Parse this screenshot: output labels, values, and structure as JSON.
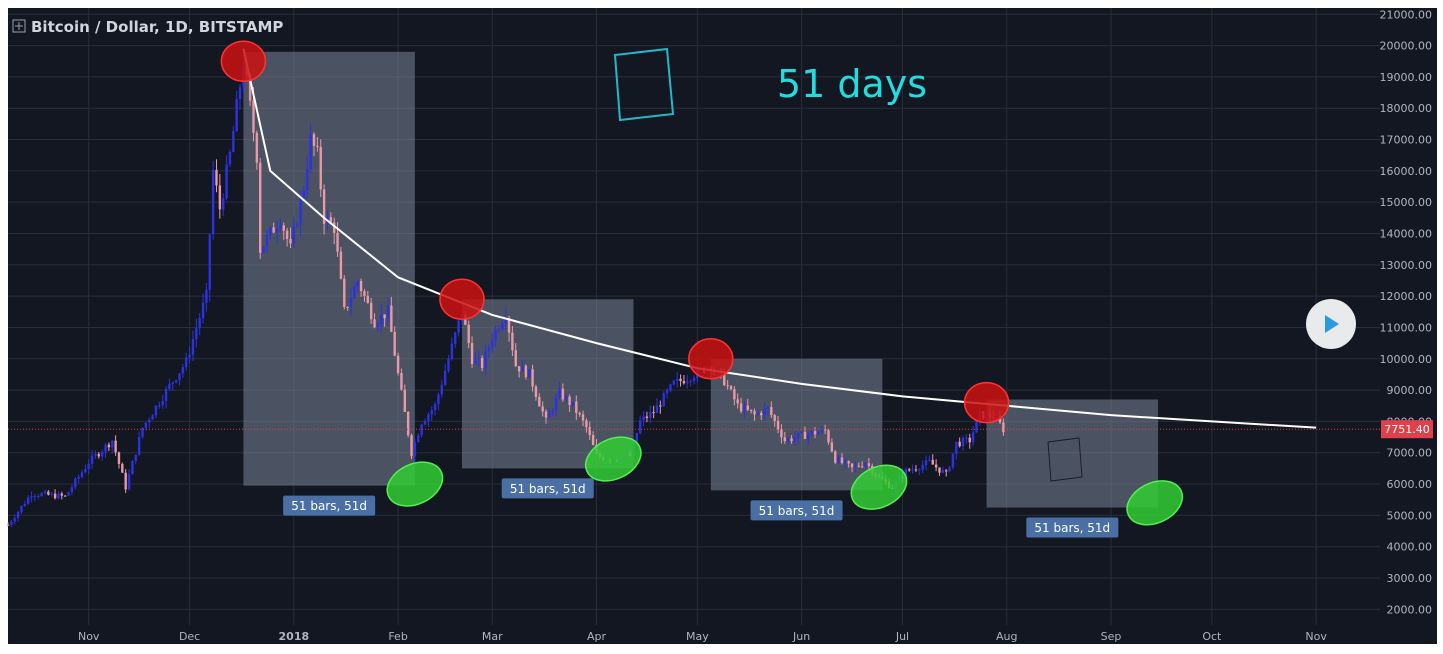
{
  "header": {
    "title": "Bitcoin / Dollar, 1D, BITSTAMP"
  },
  "annotation": {
    "big_text": "51 days",
    "range_label": "51 bars, 51d"
  },
  "last_price": {
    "label": "7751.40",
    "value": 7751.4
  },
  "colors": {
    "background": "#131722",
    "grid": "#2a2e39",
    "bull": "#2b32e0",
    "bear": "#e89aa7",
    "range_box": "#7a8496",
    "range_badge": "#4a6fa5",
    "peak_marker": "#cc1111",
    "trough_marker": "#33cc33",
    "trend_curve": "#ffffff",
    "annotation_text": "#22dde0",
    "price_line": "#e0404a"
  },
  "chart_data": {
    "type": "candlestick",
    "title": "Bitcoin / Dollar, 1D, BITSTAMP",
    "x_ticks": [
      "Nov",
      "Dec",
      "2018",
      "Feb",
      "Mar",
      "Apr",
      "May",
      "Jun",
      "Jul",
      "Aug",
      "Sep",
      "Oct",
      "Nov"
    ],
    "x_tick_dates": [
      "2017-11-01",
      "2017-12-01",
      "2018-01-01",
      "2018-02-01",
      "2018-03-01",
      "2018-04-01",
      "2018-05-01",
      "2018-06-01",
      "2018-07-01",
      "2018-08-01",
      "2018-09-01",
      "2018-10-01",
      "2018-11-01"
    ],
    "y_ticks": [
      "2000.00",
      "3000.00",
      "4000.00",
      "5000.00",
      "6000.00",
      "7000.00",
      "8000.00",
      "9000.00",
      "10000.00",
      "11000.00",
      "12000.00",
      "13000.00",
      "14000.00",
      "15000.00",
      "16000.00",
      "17000.00",
      "18000.00",
      "19000.00",
      "20000.00",
      "21000.00"
    ],
    "y_range": [
      1500,
      21200
    ],
    "x_range": [
      "2017-10-08",
      "2018-11-20"
    ],
    "price_path": [
      [
        "2017-10-08",
        4700
      ],
      [
        "2017-10-15",
        5700
      ],
      [
        "2017-10-25",
        5600
      ],
      [
        "2017-11-01",
        6700
      ],
      [
        "2017-11-08",
        7400
      ],
      [
        "2017-11-12",
        5900
      ],
      [
        "2017-11-17",
        7800
      ],
      [
        "2017-11-26",
        9300
      ],
      [
        "2017-11-30",
        9900
      ],
      [
        "2017-12-03",
        11000
      ],
      [
        "2017-12-06",
        12000
      ],
      [
        "2017-12-08",
        16000
      ],
      [
        "2017-12-10",
        14800
      ],
      [
        "2017-12-13",
        16500
      ],
      [
        "2017-12-17",
        19500
      ],
      [
        "2017-12-18",
        18800
      ],
      [
        "2017-12-21",
        16500
      ],
      [
        "2017-12-22",
        13500
      ],
      [
        "2017-12-25",
        14000
      ],
      [
        "2017-12-28",
        14500
      ],
      [
        "2017-12-31",
        13500
      ],
      [
        "2018-01-04",
        15500
      ],
      [
        "2018-01-06",
        17000
      ],
      [
        "2018-01-08",
        16500
      ],
      [
        "2018-01-10",
        14500
      ],
      [
        "2018-01-13",
        14200
      ],
      [
        "2018-01-16",
        11500
      ],
      [
        "2018-01-20",
        12500
      ],
      [
        "2018-01-25",
        11200
      ],
      [
        "2018-01-29",
        11500
      ],
      [
        "2018-02-01",
        9500
      ],
      [
        "2018-02-05",
        7000
      ],
      [
        "2018-02-08",
        8000
      ],
      [
        "2018-02-12",
        8500
      ],
      [
        "2018-02-16",
        10000
      ],
      [
        "2018-02-20",
        11500
      ],
      [
        "2018-02-23",
        10000
      ],
      [
        "2018-02-26",
        9800
      ],
      [
        "2018-03-01",
        10700
      ],
      [
        "2018-03-05",
        11500
      ],
      [
        "2018-03-08",
        9800
      ],
      [
        "2018-03-12",
        9500
      ],
      [
        "2018-03-17",
        8000
      ],
      [
        "2018-03-21",
        8900
      ],
      [
        "2018-03-25",
        8500
      ],
      [
        "2018-03-29",
        7800
      ],
      [
        "2018-04-01",
        6900
      ],
      [
        "2018-04-06",
        6800
      ],
      [
        "2018-04-11",
        6900
      ],
      [
        "2018-04-14",
        8000
      ],
      [
        "2018-04-18",
        8300
      ],
      [
        "2018-04-24",
        9200
      ],
      [
        "2018-04-28",
        9400
      ],
      [
        "2018-05-05",
        9800
      ],
      [
        "2018-05-09",
        9300
      ],
      [
        "2018-05-13",
        8500
      ],
      [
        "2018-05-18",
        8200
      ],
      [
        "2018-05-22",
        8400
      ],
      [
        "2018-05-27",
        7400
      ],
      [
        "2018-06-03",
        7600
      ],
      [
        "2018-06-08",
        7700
      ],
      [
        "2018-06-11",
        6800
      ],
      [
        "2018-06-16",
        6500
      ],
      [
        "2018-06-20",
        6700
      ],
      [
        "2018-06-24",
        6200
      ],
      [
        "2018-06-28",
        5900
      ],
      [
        "2018-07-02",
        6400
      ],
      [
        "2018-07-09",
        6700
      ],
      [
        "2018-07-14",
        6300
      ],
      [
        "2018-07-17",
        7300
      ],
      [
        "2018-07-21",
        7400
      ],
      [
        "2018-07-24",
        8200
      ],
      [
        "2018-07-28",
        8200
      ],
      [
        "2018-07-31",
        7751
      ]
    ],
    "trend_curve": [
      [
        "2017-12-17",
        19900
      ],
      [
        "2017-12-25",
        16000
      ],
      [
        "2018-01-10",
        14500
      ],
      [
        "2018-02-01",
        12600
      ],
      [
        "2018-03-01",
        11400
      ],
      [
        "2018-04-01",
        10500
      ],
      [
        "2018-05-01",
        9700
      ],
      [
        "2018-06-01",
        9200
      ],
      [
        "2018-07-01",
        8800
      ],
      [
        "2018-08-01",
        8500
      ],
      [
        "2018-09-01",
        8200
      ],
      [
        "2018-10-01",
        8000
      ],
      [
        "2018-11-01",
        7800
      ]
    ],
    "ranges": [
      {
        "start": "2017-12-17",
        "end": "2018-02-06",
        "high": 19800,
        "low": 5950,
        "label": "51 bars, 51d"
      },
      {
        "start": "2018-02-20",
        "end": "2018-04-12",
        "high": 11900,
        "low": 6500,
        "label": "51 bars, 51d"
      },
      {
        "start": "2018-05-05",
        "end": "2018-06-25",
        "high": 10000,
        "low": 5800,
        "label": "51 bars, 51d"
      },
      {
        "start": "2018-07-26",
        "end": "2018-09-15",
        "high": 8700,
        "low": 5250,
        "label": "51 bars, 51d"
      }
    ],
    "peaks": [
      {
        "date": "2017-12-17",
        "price": 19500
      },
      {
        "date": "2018-02-20",
        "price": 11900
      },
      {
        "date": "2018-05-05",
        "price": 10000
      },
      {
        "date": "2018-07-26",
        "price": 8600
      }
    ],
    "troughs": [
      {
        "date": "2018-02-06",
        "price": 6000
      },
      {
        "date": "2018-04-06",
        "price": 6800
      },
      {
        "date": "2018-06-24",
        "price": 5900
      },
      {
        "date": "2018-09-14",
        "price": 5400
      }
    ],
    "last_price": 7751.4
  }
}
